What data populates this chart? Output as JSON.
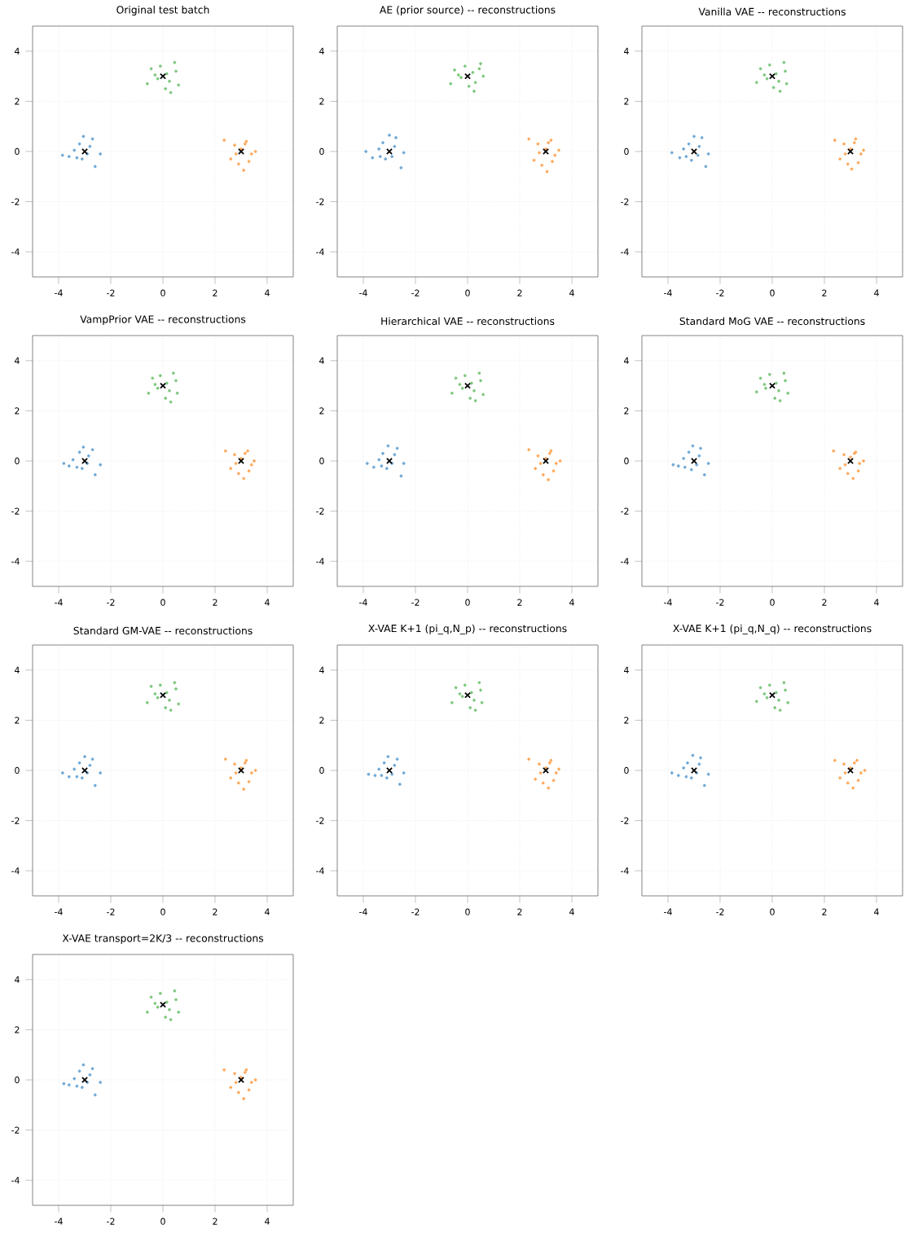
{
  "chart_data": [
    {
      "type": "scatter",
      "title": "Original test batch",
      "xlim": [
        -5,
        5
      ],
      "ylim": [
        -5,
        5
      ],
      "xticks": [
        -4,
        -2,
        0,
        2,
        4
      ],
      "yticks": [
        -4,
        -2,
        0,
        2,
        4
      ],
      "grid": true,
      "marker": "circle",
      "series": [
        {
          "color": "#6fa8d6",
          "x": [
            -3.85,
            -3.6,
            -3.4,
            -3.2,
            -3.05,
            -2.9,
            -2.7,
            -2.6,
            -2.4,
            -3.1,
            -2.8,
            -3.3
          ],
          "values": [
            -0.15,
            -0.2,
            0.05,
            0.3,
            0.6,
            -0.1,
            0.5,
            -0.6,
            -0.1,
            -0.3,
            0.2,
            -0.25
          ]
        },
        {
          "color": "#ffa85a",
          "x": [
            2.35,
            2.6,
            2.75,
            2.9,
            3.0,
            3.1,
            3.2,
            3.4,
            3.55,
            3.3,
            2.8,
            3.15
          ],
          "values": [
            0.45,
            -0.3,
            0.25,
            -0.5,
            0.1,
            -0.75,
            0.4,
            -0.1,
            0.0,
            -0.4,
            -0.1,
            0.3
          ]
        },
        {
          "color": "#7cc77c",
          "x": [
            -0.6,
            -0.45,
            -0.2,
            -0.1,
            0.1,
            0.15,
            0.3,
            0.45,
            0.6,
            0.25,
            -0.3,
            0.5
          ],
          "values": [
            2.7,
            3.3,
            2.9,
            3.4,
            2.5,
            3.1,
            2.35,
            3.55,
            2.65,
            2.8,
            3.05,
            3.2
          ]
        },
        {
          "color": "#000000",
          "marker": "cross",
          "x": [
            -3,
            3,
            0
          ],
          "values": [
            0,
            0,
            3
          ]
        }
      ]
    },
    {
      "type": "scatter",
      "title": "AE (prior source) -- reconstructions",
      "xlim": [
        -5,
        5
      ],
      "ylim": [
        -5,
        5
      ],
      "xticks": [
        -4,
        -2,
        0,
        2,
        4
      ],
      "yticks": [
        -4,
        -2,
        0,
        2,
        4
      ],
      "grid": true,
      "marker": "circle",
      "series": [
        {
          "color": "#6fa8d6",
          "x": [
            -3.9,
            -3.65,
            -3.4,
            -3.25,
            -3.0,
            -2.9,
            -2.75,
            -2.55,
            -2.45,
            -3.15,
            -2.8,
            -3.35
          ],
          "values": [
            0.0,
            -0.25,
            0.1,
            0.35,
            0.65,
            -0.2,
            0.55,
            -0.65,
            -0.05,
            -0.3,
            0.2,
            -0.2
          ]
        },
        {
          "color": "#ffa85a",
          "x": [
            2.35,
            2.55,
            2.7,
            2.85,
            3.0,
            3.05,
            3.2,
            3.35,
            3.5,
            3.25,
            2.75,
            3.1
          ],
          "values": [
            0.5,
            -0.35,
            0.3,
            -0.55,
            0.1,
            -0.8,
            0.45,
            -0.15,
            0.05,
            -0.4,
            -0.05,
            0.35
          ]
        },
        {
          "color": "#7cc77c",
          "x": [
            -0.65,
            -0.5,
            -0.25,
            -0.1,
            0.05,
            0.2,
            0.25,
            0.5,
            0.6,
            0.3,
            -0.35,
            0.45
          ],
          "values": [
            2.7,
            3.25,
            2.95,
            3.4,
            2.6,
            3.15,
            2.4,
            3.5,
            3.0,
            2.75,
            3.05,
            3.3
          ]
        },
        {
          "color": "#000000",
          "marker": "cross",
          "x": [
            -3,
            3,
            0
          ],
          "values": [
            0,
            0,
            3
          ]
        }
      ]
    },
    {
      "type": "scatter",
      "title": "Vanilla VAE -- reconstructions",
      "xlim": [
        -5,
        5
      ],
      "ylim": [
        -5,
        5
      ],
      "xticks": [
        -4,
        -2,
        0,
        2,
        4
      ],
      "yticks": [
        -4,
        -2,
        0,
        2,
        4
      ],
      "grid": true,
      "marker": "circle",
      "series": [
        {
          "color": "#6fa8d6",
          "x": [
            -3.85,
            -3.55,
            -3.4,
            -3.2,
            -3.0,
            -2.85,
            -2.7,
            -2.55,
            -2.45,
            -3.1,
            -2.8,
            -3.3
          ],
          "values": [
            -0.05,
            -0.25,
            0.1,
            0.3,
            0.6,
            -0.15,
            0.55,
            -0.6,
            -0.1,
            -0.35,
            0.2,
            -0.2
          ]
        },
        {
          "color": "#ffa85a",
          "x": [
            2.4,
            2.6,
            2.75,
            2.9,
            3.0,
            3.05,
            3.2,
            3.4,
            3.5,
            3.3,
            2.8,
            3.15
          ],
          "values": [
            0.45,
            -0.3,
            0.3,
            -0.5,
            0.1,
            -0.7,
            0.5,
            -0.1,
            0.05,
            -0.45,
            -0.1,
            0.35
          ]
        },
        {
          "color": "#7cc77c",
          "x": [
            -0.6,
            -0.45,
            -0.2,
            -0.1,
            0.05,
            0.15,
            0.3,
            0.45,
            0.55,
            0.25,
            -0.3,
            0.5
          ],
          "values": [
            2.75,
            3.3,
            2.9,
            3.45,
            2.55,
            3.1,
            2.4,
            3.55,
            2.7,
            2.8,
            3.05,
            3.2
          ]
        },
        {
          "color": "#000000",
          "marker": "cross",
          "x": [
            -3,
            3,
            0
          ],
          "values": [
            0,
            0,
            3
          ]
        }
      ]
    },
    {
      "type": "scatter",
      "title": "VampPrior VAE -- reconstructions",
      "xlim": [
        -5,
        5
      ],
      "ylim": [
        -5,
        5
      ],
      "xticks": [
        -4,
        -2,
        0,
        2,
        4
      ],
      "yticks": [
        -4,
        -2,
        0,
        2,
        4
      ],
      "grid": true,
      "marker": "circle",
      "series": [
        {
          "color": "#6fa8d6",
          "x": [
            -3.8,
            -3.6,
            -3.45,
            -3.2,
            -3.05,
            -2.9,
            -2.7,
            -2.6,
            -2.4,
            -3.1,
            -2.85,
            -3.3
          ],
          "values": [
            -0.1,
            -0.2,
            0.05,
            0.35,
            0.55,
            -0.1,
            0.45,
            -0.55,
            -0.15,
            -0.3,
            0.2,
            -0.25
          ]
        },
        {
          "color": "#ffa85a",
          "x": [
            2.4,
            2.6,
            2.75,
            2.9,
            3.0,
            3.1,
            3.25,
            3.4,
            3.5,
            3.3,
            2.8,
            3.15
          ],
          "values": [
            0.4,
            -0.3,
            0.25,
            -0.5,
            0.1,
            -0.7,
            0.4,
            -0.15,
            0.0,
            -0.4,
            -0.1,
            0.3
          ]
        },
        {
          "color": "#7cc77c",
          "x": [
            -0.55,
            -0.4,
            -0.2,
            -0.1,
            0.1,
            0.15,
            0.3,
            0.4,
            0.55,
            0.25,
            -0.3,
            0.5
          ],
          "values": [
            2.7,
            3.3,
            2.9,
            3.4,
            2.5,
            3.1,
            2.35,
            3.5,
            2.7,
            2.8,
            3.05,
            3.2
          ]
        },
        {
          "color": "#000000",
          "marker": "cross",
          "x": [
            -3,
            3,
            0
          ],
          "values": [
            0,
            0,
            3
          ]
        }
      ]
    },
    {
      "type": "scatter",
      "title": "Hierarchical VAE -- reconstructions",
      "xlim": [
        -5,
        5
      ],
      "ylim": [
        -5,
        5
      ],
      "xticks": [
        -4,
        -2,
        0,
        2,
        4
      ],
      "yticks": [
        -4,
        -2,
        0,
        2,
        4
      ],
      "grid": true,
      "marker": "circle",
      "series": [
        {
          "color": "#6fa8d6",
          "x": [
            -3.85,
            -3.6,
            -3.4,
            -3.25,
            -3.05,
            -2.9,
            -2.7,
            -2.55,
            -2.45,
            -3.1,
            -2.8,
            -3.3
          ],
          "values": [
            -0.1,
            -0.25,
            0.05,
            0.3,
            0.6,
            -0.1,
            0.5,
            -0.6,
            -0.1,
            -0.3,
            0.25,
            -0.2
          ]
        },
        {
          "color": "#ffa85a",
          "x": [
            2.35,
            2.6,
            2.7,
            2.9,
            3.0,
            3.1,
            3.2,
            3.4,
            3.55,
            3.3,
            2.8,
            3.15
          ],
          "values": [
            0.45,
            -0.3,
            0.2,
            -0.55,
            0.1,
            -0.75,
            0.4,
            -0.1,
            0.0,
            -0.4,
            -0.1,
            0.3
          ]
        },
        {
          "color": "#7cc77c",
          "x": [
            -0.6,
            -0.45,
            -0.2,
            -0.1,
            0.1,
            0.15,
            0.3,
            0.45,
            0.6,
            0.25,
            -0.3,
            0.5
          ],
          "values": [
            2.7,
            3.3,
            2.9,
            3.4,
            2.5,
            3.1,
            2.4,
            3.5,
            2.65,
            2.8,
            3.05,
            3.2
          ]
        },
        {
          "color": "#000000",
          "marker": "cross",
          "x": [
            -3,
            3,
            0
          ],
          "values": [
            0,
            0,
            3
          ]
        }
      ]
    },
    {
      "type": "scatter",
      "title": "Standard MoG VAE -- reconstructions",
      "xlim": [
        -5,
        5
      ],
      "ylim": [
        -5,
        5
      ],
      "xticks": [
        -4,
        -2,
        0,
        2,
        4
      ],
      "yticks": [
        -4,
        -2,
        0,
        2,
        4
      ],
      "grid": true,
      "marker": "circle",
      "series": [
        {
          "color": "#6fa8d6",
          "x": [
            -3.8,
            -3.6,
            -3.4,
            -3.2,
            -3.05,
            -2.9,
            -2.75,
            -2.6,
            -2.45,
            -3.1,
            -2.8,
            -3.35
          ],
          "values": [
            -0.15,
            -0.2,
            0.1,
            0.35,
            0.6,
            -0.15,
            0.5,
            -0.55,
            -0.1,
            -0.35,
            0.2,
            -0.25
          ]
        },
        {
          "color": "#ffa85a",
          "x": [
            2.35,
            2.6,
            2.75,
            2.9,
            3.0,
            3.1,
            3.2,
            3.35,
            3.5,
            3.3,
            2.8,
            3.15
          ],
          "values": [
            0.4,
            -0.3,
            0.25,
            -0.5,
            0.15,
            -0.7,
            0.35,
            -0.1,
            0.0,
            -0.4,
            -0.15,
            0.3
          ]
        },
        {
          "color": "#7cc77c",
          "x": [
            -0.6,
            -0.45,
            -0.25,
            -0.1,
            0.1,
            0.15,
            0.3,
            0.45,
            0.6,
            0.25,
            -0.3,
            0.5
          ],
          "values": [
            2.75,
            3.3,
            2.9,
            3.45,
            2.5,
            3.1,
            2.4,
            3.5,
            2.7,
            2.8,
            3.05,
            3.2
          ]
        },
        {
          "color": "#000000",
          "marker": "cross",
          "x": [
            -3,
            3,
            0
          ],
          "values": [
            0,
            0,
            3
          ]
        }
      ]
    },
    {
      "type": "scatter",
      "title": "Standard GM-VAE -- reconstructions",
      "xlim": [
        -5,
        5
      ],
      "ylim": [
        -5,
        5
      ],
      "xticks": [
        -4,
        -2,
        0,
        2,
        4
      ],
      "yticks": [
        -4,
        -2,
        0,
        2,
        4
      ],
      "grid": true,
      "marker": "circle",
      "series": [
        {
          "color": "#6fa8d6",
          "x": [
            -3.85,
            -3.6,
            -3.4,
            -3.2,
            -3.0,
            -2.9,
            -2.7,
            -2.6,
            -2.4,
            -3.1,
            -2.8,
            -3.3
          ],
          "values": [
            -0.1,
            -0.25,
            0.05,
            0.3,
            0.55,
            -0.1,
            0.45,
            -0.6,
            -0.1,
            -0.3,
            0.2,
            -0.25
          ]
        },
        {
          "color": "#ffa85a",
          "x": [
            2.4,
            2.6,
            2.75,
            2.9,
            3.0,
            3.1,
            3.2,
            3.4,
            3.55,
            3.3,
            2.8,
            3.15
          ],
          "values": [
            0.45,
            -0.3,
            0.25,
            -0.5,
            0.1,
            -0.75,
            0.4,
            -0.1,
            0.0,
            -0.45,
            -0.1,
            0.3
          ]
        },
        {
          "color": "#7cc77c",
          "x": [
            -0.6,
            -0.45,
            -0.2,
            -0.1,
            0.1,
            0.15,
            0.3,
            0.45,
            0.6,
            0.25,
            -0.3,
            0.5
          ],
          "values": [
            2.7,
            3.35,
            2.9,
            3.4,
            2.5,
            3.1,
            2.4,
            3.5,
            2.65,
            2.8,
            3.05,
            3.25
          ]
        },
        {
          "color": "#000000",
          "marker": "cross",
          "x": [
            -3,
            3,
            0
          ],
          "values": [
            0,
            0,
            3
          ]
        }
      ]
    },
    {
      "type": "scatter",
      "title": "X-VAE K+1 (pi_q,N_p) -- reconstructions",
      "xlim": [
        -5,
        5
      ],
      "ylim": [
        -5,
        5
      ],
      "xticks": [
        -4,
        -2,
        0,
        2,
        4
      ],
      "yticks": [
        -4,
        -2,
        0,
        2,
        4
      ],
      "grid": true,
      "marker": "circle",
      "series": [
        {
          "color": "#6fa8d6",
          "x": [
            -3.8,
            -3.55,
            -3.4,
            -3.2,
            -3.05,
            -2.9,
            -2.7,
            -2.6,
            -2.45,
            -3.1,
            -2.8,
            -3.3
          ],
          "values": [
            -0.15,
            -0.2,
            0.05,
            0.3,
            0.55,
            -0.15,
            0.45,
            -0.55,
            -0.1,
            -0.3,
            0.2,
            -0.2
          ]
        },
        {
          "color": "#ffa85a",
          "x": [
            2.35,
            2.6,
            2.75,
            2.9,
            3.0,
            3.1,
            3.2,
            3.4,
            3.5,
            3.3,
            2.8,
            3.15
          ],
          "values": [
            0.45,
            -0.35,
            0.25,
            -0.5,
            0.1,
            -0.7,
            0.4,
            -0.1,
            0.05,
            -0.4,
            -0.1,
            0.3
          ]
        },
        {
          "color": "#7cc77c",
          "x": [
            -0.6,
            -0.45,
            -0.2,
            -0.1,
            0.1,
            0.15,
            0.3,
            0.45,
            0.55,
            0.25,
            -0.3,
            0.5
          ],
          "values": [
            2.7,
            3.3,
            2.95,
            3.4,
            2.5,
            3.1,
            2.4,
            3.5,
            2.7,
            2.8,
            3.05,
            3.2
          ]
        },
        {
          "color": "#000000",
          "marker": "cross",
          "x": [
            -3,
            3,
            0
          ],
          "values": [
            0,
            0,
            3
          ]
        }
      ]
    },
    {
      "type": "scatter",
      "title": "X-VAE K+1 (pi_q,N_q) -- reconstructions",
      "xlim": [
        -5,
        5
      ],
      "ylim": [
        -5,
        5
      ],
      "xticks": [
        -4,
        -2,
        0,
        2,
        4
      ],
      "yticks": [
        -4,
        -2,
        0,
        2,
        4
      ],
      "grid": true,
      "marker": "circle",
      "series": [
        {
          "color": "#6fa8d6",
          "x": [
            -3.85,
            -3.6,
            -3.4,
            -3.25,
            -3.05,
            -2.9,
            -2.75,
            -2.6,
            -2.45,
            -3.1,
            -2.8,
            -3.3
          ],
          "values": [
            -0.1,
            -0.2,
            0.1,
            0.3,
            0.6,
            -0.1,
            0.5,
            -0.6,
            -0.15,
            -0.3,
            0.25,
            -0.25
          ]
        },
        {
          "color": "#ffa85a",
          "x": [
            2.4,
            2.6,
            2.75,
            2.9,
            3.0,
            3.1,
            3.25,
            3.4,
            3.55,
            3.3,
            2.8,
            3.15
          ],
          "values": [
            0.4,
            -0.3,
            0.25,
            -0.5,
            0.1,
            -0.7,
            0.4,
            -0.1,
            0.0,
            -0.4,
            -0.1,
            0.3
          ]
        },
        {
          "color": "#7cc77c",
          "x": [
            -0.6,
            -0.45,
            -0.2,
            -0.1,
            0.1,
            0.15,
            0.3,
            0.45,
            0.6,
            0.25,
            -0.3,
            0.5
          ],
          "values": [
            2.75,
            3.3,
            2.9,
            3.4,
            2.5,
            3.1,
            2.4,
            3.5,
            2.7,
            2.8,
            3.05,
            3.2
          ]
        },
        {
          "color": "#000000",
          "marker": "cross",
          "x": [
            -3,
            3,
            0
          ],
          "values": [
            0,
            0,
            3
          ]
        }
      ]
    },
    {
      "type": "scatter",
      "title": "X-VAE transport=2K/3 -- reconstructions",
      "xlim": [
        -5,
        5
      ],
      "ylim": [
        -5,
        5
      ],
      "xticks": [
        -4,
        -2,
        0,
        2,
        4
      ],
      "yticks": [
        -4,
        -2,
        0,
        2,
        4
      ],
      "grid": true,
      "marker": "circle",
      "series": [
        {
          "color": "#6fa8d6",
          "x": [
            -3.8,
            -3.6,
            -3.4,
            -3.2,
            -3.05,
            -2.9,
            -2.7,
            -2.6,
            -2.4,
            -3.1,
            -2.8,
            -3.3
          ],
          "values": [
            -0.15,
            -0.2,
            0.05,
            0.35,
            0.6,
            -0.1,
            0.45,
            -0.6,
            -0.1,
            -0.3,
            0.2,
            -0.25
          ]
        },
        {
          "color": "#ffa85a",
          "x": [
            2.35,
            2.6,
            2.75,
            2.9,
            3.0,
            3.1,
            3.2,
            3.4,
            3.55,
            3.3,
            2.8,
            3.15
          ],
          "values": [
            0.4,
            -0.3,
            0.25,
            -0.5,
            0.1,
            -0.75,
            0.4,
            -0.1,
            0.0,
            -0.4,
            -0.1,
            0.3
          ]
        },
        {
          "color": "#7cc77c",
          "x": [
            -0.6,
            -0.45,
            -0.2,
            -0.1,
            0.1,
            0.15,
            0.3,
            0.45,
            0.6,
            0.25,
            -0.3,
            0.5
          ],
          "values": [
            2.7,
            3.3,
            2.9,
            3.45,
            2.5,
            3.1,
            2.4,
            3.55,
            2.7,
            2.8,
            3.05,
            3.2
          ]
        },
        {
          "color": "#000000",
          "marker": "cross",
          "x": [
            -3,
            3,
            0
          ],
          "values": [
            0,
            0,
            3
          ]
        }
      ]
    }
  ]
}
